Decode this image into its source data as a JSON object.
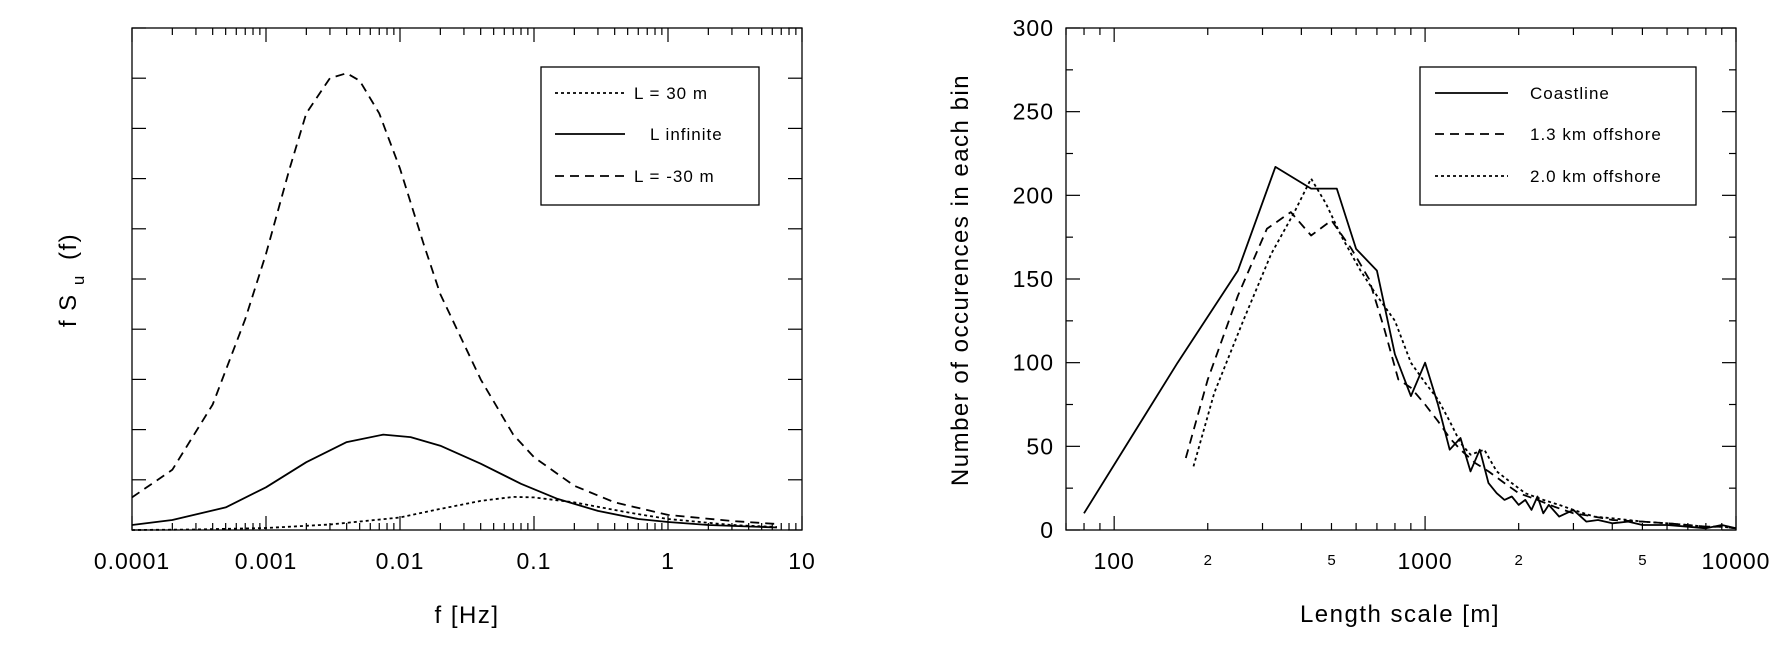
{
  "chart_data": [
    {
      "id": "left",
      "type": "line",
      "xlabel": "f [Hz]",
      "ylabel_main": "f S",
      "ylabel_sub": "u",
      "ylabel_tail": "(f)",
      "x_scale": "log",
      "xlim": [
        0.0001,
        10
      ],
      "x_tick_labels": [
        "0.0001",
        "0.001",
        "0.01",
        "0.1",
        "1",
        "10"
      ],
      "x_tick_values": [
        0.0001,
        0.001,
        0.01,
        0.1,
        1,
        10
      ],
      "ylim": [
        0,
        1
      ],
      "y_tick_labels_shown": false,
      "grid": false,
      "legend_position": "top-right",
      "series": [
        {
          "name": "L = 30 m",
          "style": "dotted",
          "x": [
            0.0001,
            0.0003,
            0.001,
            0.003,
            0.01,
            0.02,
            0.04,
            0.07,
            0.1,
            0.2,
            0.5,
            1,
            3,
            6.5
          ],
          "y": [
            0,
            0.001,
            0.004,
            0.011,
            0.025,
            0.042,
            0.058,
            0.066,
            0.065,
            0.055,
            0.035,
            0.022,
            0.01,
            0.006
          ]
        },
        {
          "name": "L infinite",
          "style": "solid",
          "x": [
            0.0001,
            0.0002,
            0.0005,
            0.001,
            0.002,
            0.004,
            0.0075,
            0.012,
            0.02,
            0.04,
            0.08,
            0.15,
            0.3,
            0.6,
            1,
            2,
            6.5
          ],
          "y": [
            0.01,
            0.02,
            0.045,
            0.085,
            0.135,
            0.175,
            0.19,
            0.185,
            0.168,
            0.132,
            0.092,
            0.062,
            0.038,
            0.022,
            0.016,
            0.01,
            0.005
          ]
        },
        {
          "name": "L = -30 m",
          "style": "dashed",
          "x": [
            0.0001,
            0.0002,
            0.0004,
            0.0007,
            0.001,
            0.0015,
            0.002,
            0.003,
            0.004,
            0.005,
            0.007,
            0.01,
            0.015,
            0.02,
            0.04,
            0.07,
            0.1,
            0.2,
            0.4,
            1,
            3,
            6.5
          ],
          "y": [
            0.065,
            0.12,
            0.25,
            0.42,
            0.55,
            0.72,
            0.83,
            0.9,
            0.91,
            0.895,
            0.83,
            0.72,
            0.57,
            0.47,
            0.3,
            0.19,
            0.145,
            0.088,
            0.055,
            0.03,
            0.018,
            0.012
          ]
        }
      ]
    },
    {
      "id": "right",
      "type": "line",
      "xlabel": "Length scale [m]",
      "ylabel": "Number of occurences in each bin",
      "x_scale": "log",
      "xlim": [
        70,
        10000
      ],
      "x_tick_labels": [
        "100",
        "1000",
        "10000"
      ],
      "x_tick_values": [
        100,
        1000,
        10000
      ],
      "x_minor_labels": [
        "2",
        "5",
        "2",
        "5"
      ],
      "x_minor_values": [
        200,
        500,
        2000,
        5000
      ],
      "ylim": [
        0,
        300
      ],
      "y_tick_labels": [
        "0",
        "50",
        "100",
        "150",
        "200",
        "250",
        "300"
      ],
      "y_tick_values": [
        0,
        50,
        100,
        150,
        200,
        250,
        300
      ],
      "grid": false,
      "legend_position": "top-right",
      "series": [
        {
          "name": "Coastline",
          "style": "solid",
          "x": [
            80,
            160,
            250,
            330,
            430,
            520,
            600,
            700,
            800,
            900,
            1000,
            1100,
            1200,
            1300,
            1400,
            1500,
            1600,
            1700,
            1800,
            1900,
            2000,
            2100,
            2200,
            2300,
            2400,
            2500,
            2700,
            3000,
            3300,
            3600,
            4000,
            4500,
            5000,
            6000,
            7000,
            8000,
            9000,
            10000
          ],
          "y": [
            10,
            100,
            155,
            217,
            204,
            204,
            168,
            155,
            105,
            80,
            100,
            75,
            48,
            55,
            35,
            48,
            28,
            22,
            18,
            20,
            15,
            18,
            12,
            20,
            10,
            15,
            8,
            12,
            5,
            6,
            4,
            5,
            3,
            3,
            2,
            1,
            3,
            1
          ]
        },
        {
          "name": "1.3 km offshore",
          "style": "dashed",
          "x": [
            170,
            200,
            250,
            310,
            370,
            430,
            500,
            580,
            660,
            740,
            820,
            900,
            1000,
            1100,
            1200,
            1300,
            1450,
            1600,
            1800,
            2000,
            2300,
            2600,
            3000,
            3500,
            4000,
            5000,
            6000,
            7000,
            8000,
            9000,
            10000
          ],
          "y": [
            43,
            90,
            140,
            180,
            190,
            176,
            185,
            168,
            150,
            120,
            90,
            85,
            75,
            65,
            55,
            48,
            40,
            35,
            28,
            22,
            18,
            14,
            10,
            8,
            6,
            5,
            4,
            3,
            2,
            2,
            1
          ]
        },
        {
          "name": "2.0 km offshore",
          "style": "dotted",
          "x": [
            180,
            210,
            260,
            320,
            380,
            430,
            480,
            540,
            620,
            700,
            800,
            900,
            1000,
            1100,
            1200,
            1300,
            1400,
            1550,
            1700,
            1900,
            2100,
            2400,
            2700,
            3000,
            3500,
            4000,
            4500,
            5000,
            6000,
            7000,
            8000,
            9000,
            10000
          ],
          "y": [
            38,
            82,
            125,
            165,
            190,
            210,
            195,
            175,
            155,
            140,
            125,
            100,
            88,
            78,
            65,
            52,
            45,
            48,
            35,
            28,
            22,
            18,
            15,
            12,
            8,
            7,
            6,
            5,
            4,
            3,
            2,
            2,
            1
          ]
        }
      ]
    }
  ]
}
